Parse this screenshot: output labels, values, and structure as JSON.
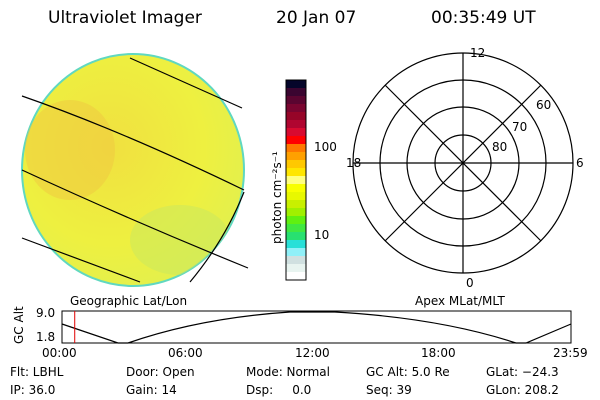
{
  "header": {
    "title": "Ultraviolet Imager",
    "date": "20 Jan 07",
    "time": "00:35:49 UT"
  },
  "colorbar": {
    "label": "photon cm⁻²s⁻¹",
    "ticks": [
      "100",
      "10"
    ],
    "colors": [
      "#05052a",
      "#3a0530",
      "#5a0530",
      "#7a0530",
      "#960528",
      "#b00530",
      "#d80a30",
      "#ff0000",
      "#ff7800",
      "#ffa000",
      "#ffc800",
      "#ffe600",
      "#ffff80",
      "#f8ff00",
      "#e8f800",
      "#c8f000",
      "#a0f000",
      "#60f010",
      "#40e840",
      "#28e070",
      "#28e0d8",
      "#90f0f8",
      "#d0e0e0",
      "#e8f4f0",
      "#ffffff"
    ]
  },
  "polar": {
    "labels": {
      "top": "12",
      "left": "18",
      "right": "6",
      "bottom": "0"
    },
    "lat_labels": [
      "60",
      "70",
      "80"
    ]
  },
  "altplot": {
    "left_title": "Geographic Lat/Lon",
    "right_title": "Apex MLat/MLT",
    "ylabel": "GC Alt",
    "yticks": [
      "9.0",
      "1.8"
    ],
    "xticks": [
      "00:00",
      "06:00",
      "12:00",
      "18:00",
      "23:59"
    ],
    "marker_fraction": 0.025
  },
  "status": {
    "row1": [
      "Flt: LBHL",
      "Door: Open",
      "Mode: Normal",
      "GC Alt: 5.0 Re",
      "GLat: −24.3"
    ],
    "row2": [
      "IP: 36.0",
      "Gain: 14",
      "Dsp:     0.0",
      "Seq: 39",
      "GLon: 208.2"
    ]
  }
}
